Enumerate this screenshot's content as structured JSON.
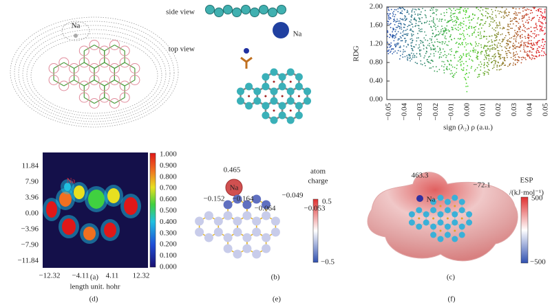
{
  "panels": {
    "a": {
      "caption": "(a)",
      "label": "Na"
    },
    "b": {
      "caption": "(b)",
      "side_view": "side view",
      "top_view": "top view",
      "label": "Na"
    },
    "c": {
      "caption": "(c)",
      "y_title": "RDG",
      "x_title": "sign (λ₂) ρ (a.u.)",
      "yticks": [
        "2.00",
        "1.60",
        "1.20",
        "0.80",
        "0.40",
        "0.00"
      ],
      "xticks": [
        "−0.05",
        "−0.04",
        "−0.03",
        "−0.02",
        "−0.01",
        "0.00",
        "0.01",
        "0.02",
        "0.03",
        "0.04",
        "0.05"
      ]
    },
    "d": {
      "caption": "(d)",
      "label": "Na",
      "x_title": "length unit. hohr",
      "yticks": [
        "11.84",
        "7.90",
        "3.96",
        "0.00",
        "−3.96",
        "−7.90",
        "−11.84"
      ],
      "xticks": [
        "−12.32",
        "−4.11",
        "4.11",
        "12.32"
      ],
      "colorbar_ticks": [
        "1.000",
        "0.900",
        "0.800",
        "0.700",
        "0.600",
        "0.500",
        "0.400",
        "0.300",
        "0.200",
        "0.100",
        "0.000"
      ]
    },
    "e": {
      "caption": "(e)",
      "na_label": "Na",
      "na_charge": "0.465",
      "charges": [
        "−0.152",
        "−0.164",
        "−0.064",
        "−0.049",
        "−0.053"
      ],
      "colorbar_title": [
        "atom",
        "charge"
      ],
      "colorbar_ticks": [
        "0.5",
        "−0.5"
      ]
    },
    "f": {
      "caption": "(f)",
      "na_label": "Na",
      "values": [
        "463.3",
        "−72.1"
      ],
      "colorbar_title": [
        "ESP",
        "/(kJ·mol⁻¹)"
      ],
      "colorbar_ticks": [
        "500",
        "−500"
      ]
    }
  }
}
